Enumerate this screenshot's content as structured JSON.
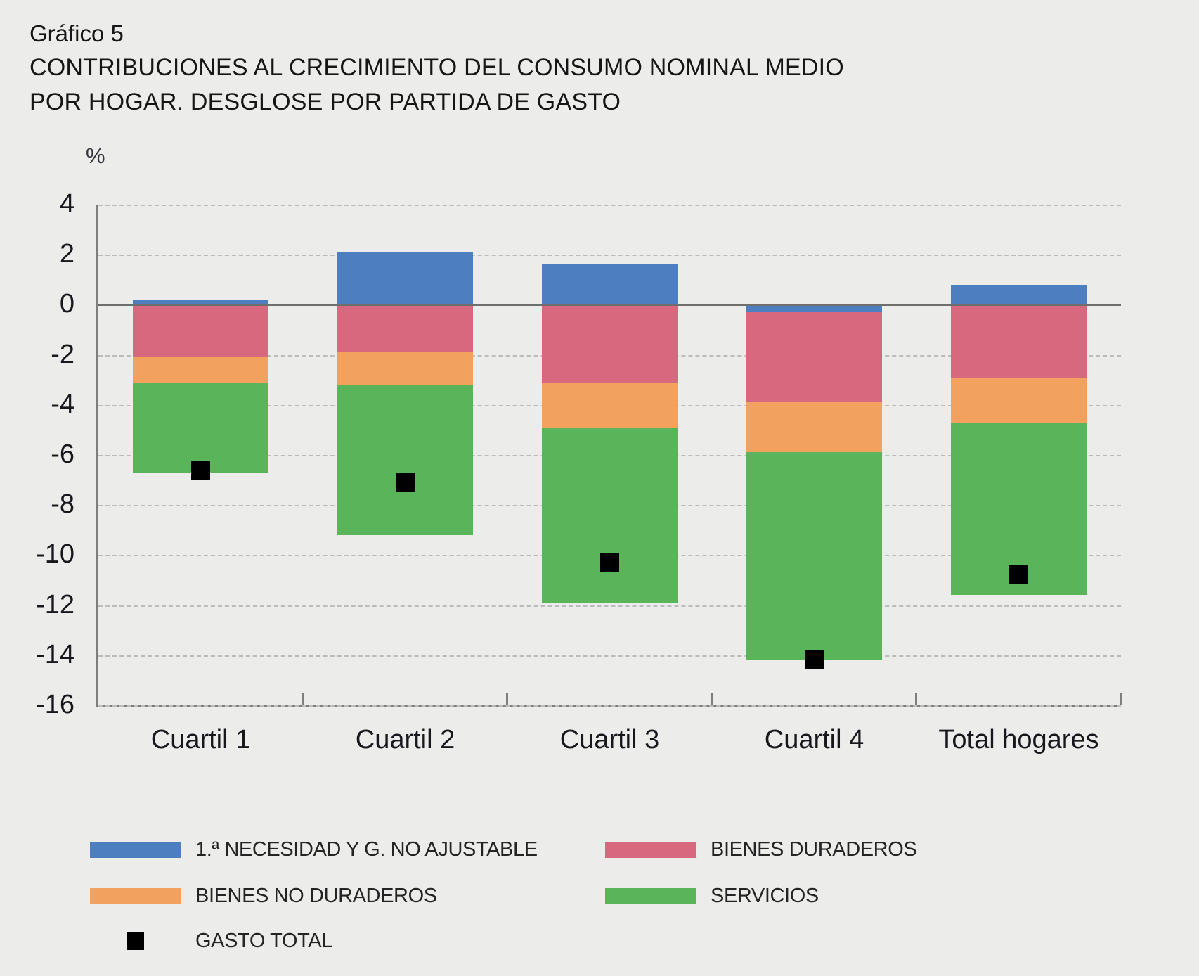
{
  "header": {
    "label": "Gráfico 5",
    "title_line1": "CONTRIBUCIONES AL CRECIMIENTO DEL CONSUMO NOMINAL MEDIO",
    "title_line2": "POR HOGAR. DESGLOSE POR PARTIDA DE GASTO"
  },
  "chart_data": {
    "type": "bar",
    "stacked": true,
    "title": "Gráfico 5. Contribuciones al crecimiento del consumo nominal medio por hogar. Desglose por partida de gasto",
    "ylabel": "%",
    "ylim": [
      -16,
      4
    ],
    "yticks": [
      4,
      2,
      0,
      -2,
      -4,
      -6,
      -8,
      -10,
      -12,
      -14,
      -16
    ],
    "grid": "dashed horizontal",
    "legend_position": "bottom",
    "categories": [
      "Cuartil 1",
      "Cuartil 2",
      "Cuartil 3",
      "Cuartil 4",
      "Total hogares"
    ],
    "series": [
      {
        "name": "1.ª NECESIDAD Y G. NO AJUSTABLE",
        "color": "#4c7ec0",
        "values": [
          0.2,
          2.1,
          1.6,
          -0.3,
          0.8
        ]
      },
      {
        "name": "BIENES DURADEROS",
        "color": "#d8687e",
        "values": [
          -2.1,
          -1.9,
          -3.1,
          -3.6,
          -2.9
        ]
      },
      {
        "name": "BIENES NO DURADEROS",
        "color": "#f2a15e",
        "values": [
          -1.0,
          -1.3,
          -1.8,
          -2.0,
          -1.8
        ]
      },
      {
        "name": "SERVICIOS",
        "color": "#5ab55a",
        "values": [
          -3.6,
          -6.0,
          -7.0,
          -8.3,
          -6.9
        ]
      }
    ],
    "markers": {
      "name": "GASTO TOTAL",
      "color": "#000000",
      "values": [
        -6.6,
        -7.1,
        -10.3,
        -14.2,
        -10.8
      ]
    },
    "colors": {
      "background": "#ececea",
      "axis": "#7e7e7e",
      "zero_line": "#6e6e6e",
      "gridline": "#bcbcbc"
    }
  },
  "legend": {
    "items": [
      {
        "label": "1.ª NECESIDAD Y G. NO AJUSTABLE",
        "color": "#4c7ec0",
        "shape": "bar"
      },
      {
        "label": "BIENES DURADEROS",
        "color": "#d8687e",
        "shape": "bar"
      },
      {
        "label": "BIENES NO DURADEROS",
        "color": "#f2a15e",
        "shape": "bar"
      },
      {
        "label": "SERVICIOS",
        "color": "#5ab55a",
        "shape": "bar"
      },
      {
        "label": "GASTO TOTAL",
        "color": "#000000",
        "shape": "square"
      }
    ]
  }
}
